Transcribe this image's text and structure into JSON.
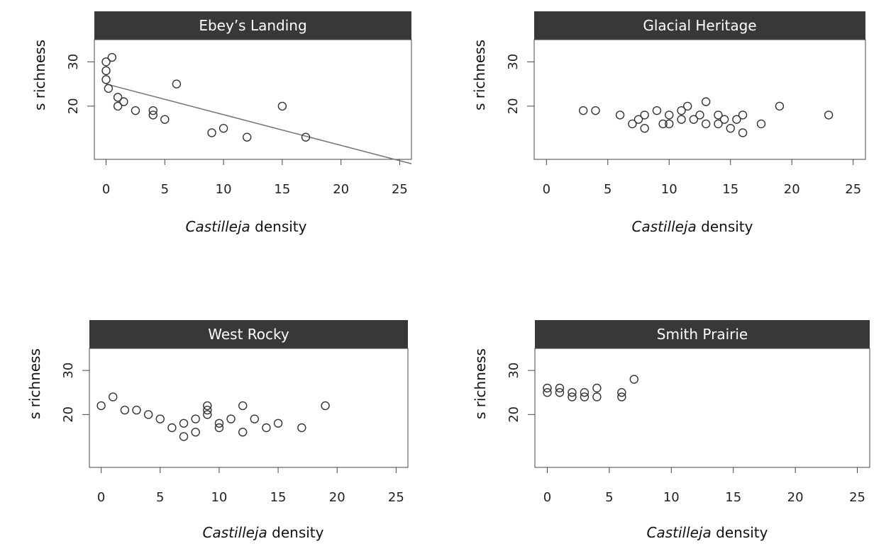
{
  "chart_data": [
    {
      "type": "scatter",
      "title": "Ebey’s Landing",
      "xlabel_italic": "Castilleja",
      "xlabel_rest": " density",
      "ylabel": "s richness",
      "xlim": [
        -1,
        26
      ],
      "ylim": [
        8,
        35
      ],
      "xticks": [
        "0",
        "5",
        "10",
        "15",
        "20",
        "25"
      ],
      "yticks": [
        "20",
        "30"
      ],
      "trend": {
        "x": [
          0,
          26
        ],
        "y": [
          25,
          7
        ]
      },
      "points": {
        "x": [
          0,
          0,
          0,
          0.2,
          0.5,
          1,
          1,
          1.5,
          2.5,
          4,
          4,
          5,
          6,
          9,
          10,
          12,
          15,
          17
        ],
        "y": [
          30,
          28,
          26,
          24,
          31,
          22,
          20,
          21,
          19,
          18,
          19,
          17,
          25,
          14,
          15,
          13,
          20,
          13
        ]
      }
    },
    {
      "type": "scatter",
      "title": "Glacial Heritage",
      "xlabel_italic": "Castilleja",
      "xlabel_rest": " density",
      "ylabel": "s richness",
      "xlim": [
        -1,
        26
      ],
      "ylim": [
        8,
        35
      ],
      "xticks": [
        "0",
        "5",
        "10",
        "15",
        "20",
        "25"
      ],
      "yticks": [
        "20",
        "30"
      ],
      "points": {
        "x": [
          3,
          4,
          6,
          7,
          7.5,
          8,
          8,
          9,
          9.5,
          10,
          10,
          11,
          11,
          11.5,
          12,
          12.5,
          13,
          13,
          14,
          14,
          14.5,
          15,
          15.5,
          16,
          16,
          17.5,
          19,
          23
        ],
        "y": [
          19,
          19,
          18,
          16,
          17,
          15,
          18,
          19,
          16,
          16,
          18,
          17,
          19,
          20,
          17,
          18,
          16,
          21,
          16,
          18,
          17,
          15,
          17,
          14,
          18,
          16,
          20,
          18
        ]
      }
    },
    {
      "type": "scatter",
      "title": "West Rocky",
      "xlabel_italic": "Castilleja",
      "xlabel_rest": " density",
      "ylabel": "s richness",
      "xlim": [
        -1,
        26
      ],
      "ylim": [
        8,
        35
      ],
      "xticks": [
        "0",
        "5",
        "10",
        "15",
        "20",
        "25"
      ],
      "yticks": [
        "20",
        "30"
      ],
      "points": {
        "x": [
          0,
          1,
          2,
          3,
          4,
          5,
          6,
          7,
          7,
          8,
          8,
          9,
          9,
          9,
          10,
          10,
          11,
          12,
          12,
          13,
          14,
          15,
          17,
          19
        ],
        "y": [
          22,
          24,
          21,
          21,
          20,
          19,
          17,
          18,
          15,
          19,
          16,
          20,
          21,
          22,
          17,
          18,
          19,
          22,
          16,
          19,
          17,
          18,
          17,
          22
        ]
      }
    },
    {
      "type": "scatter",
      "title": "Smith Prairie",
      "xlabel_italic": "Castilleja",
      "xlabel_rest": " density",
      "ylabel": "s richness",
      "xlim": [
        -1,
        26
      ],
      "ylim": [
        8,
        35
      ],
      "xticks": [
        "0",
        "5",
        "10",
        "15",
        "20",
        "25"
      ],
      "yticks": [
        "20",
        "30"
      ],
      "points": {
        "x": [
          0,
          0,
          1,
          1,
          2,
          2,
          3,
          3,
          4,
          4,
          6,
          6,
          7
        ],
        "y": [
          26,
          25,
          26,
          25,
          25,
          24,
          24,
          25,
          24,
          26,
          25,
          24,
          28
        ]
      }
    }
  ]
}
